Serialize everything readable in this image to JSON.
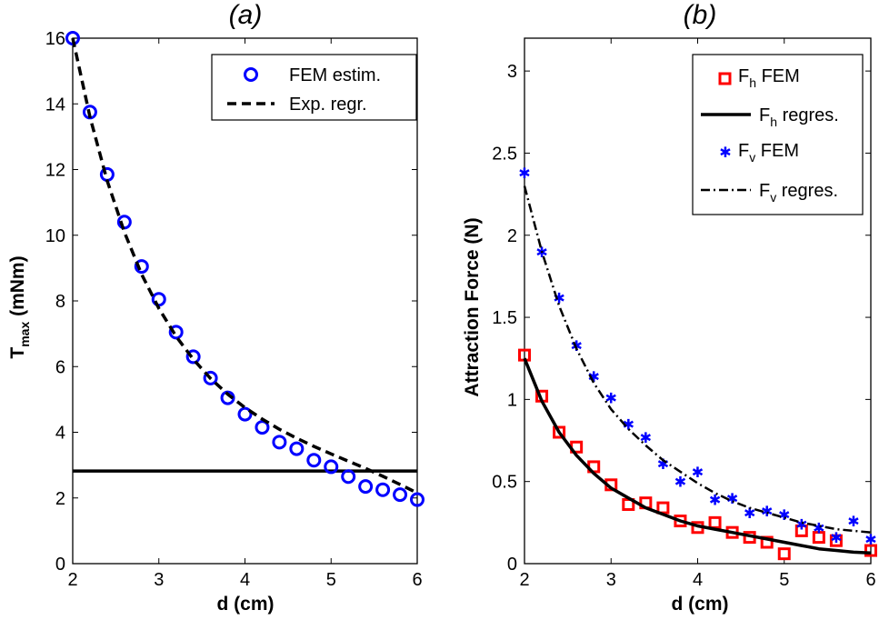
{
  "chart_data": [
    {
      "id": "a",
      "type": "scatter",
      "title": "(a)",
      "xlabel": "d (cm)",
      "ylabel_main": "T",
      "ylabel_sub": "max",
      "ylabel_rest": " (mNm)",
      "xlim": [
        2,
        6
      ],
      "ylim": [
        0,
        16
      ],
      "xticks": [
        2,
        3,
        4,
        5,
        6
      ],
      "yticks": [
        0,
        2,
        4,
        6,
        8,
        10,
        12,
        14,
        16
      ],
      "legend_position": "top-right",
      "hline": {
        "y": 2.82,
        "color": "#000000"
      },
      "series": [
        {
          "name": "FEM estim.",
          "marker": "circle",
          "color": "#0000ff",
          "x": [
            2.0,
            2.2,
            2.4,
            2.6,
            2.8,
            3.0,
            3.2,
            3.4,
            3.6,
            3.8,
            4.0,
            4.2,
            4.4,
            4.6,
            4.8,
            5.0,
            5.2,
            5.4,
            5.6,
            5.8,
            6.0
          ],
          "y": [
            16.0,
            13.75,
            11.85,
            10.4,
            9.05,
            8.05,
            7.05,
            6.3,
            5.65,
            5.05,
            4.55,
            4.15,
            3.7,
            3.5,
            3.15,
            2.95,
            2.65,
            2.35,
            2.25,
            2.1,
            1.95
          ]
        },
        {
          "name": "Exp. regr.",
          "line": "dashed",
          "color": "#000000",
          "x": [
            2.0,
            2.2,
            2.4,
            2.6,
            2.8,
            3.0,
            3.2,
            3.4,
            3.6,
            3.8,
            4.0,
            4.2,
            4.4,
            4.6,
            4.8,
            5.0,
            5.2,
            5.4,
            5.6,
            5.8,
            6.0
          ],
          "y": [
            16.0,
            13.6,
            11.66,
            10.09,
            8.81,
            7.77,
            6.92,
            6.22,
            5.64,
            5.16,
            4.75,
            4.4,
            4.09,
            3.82,
            3.57,
            3.34,
            3.12,
            2.9,
            2.66,
            2.41,
            2.15
          ]
        }
      ]
    },
    {
      "id": "b",
      "type": "scatter",
      "title": "(b)",
      "xlabel": "d (cm)",
      "ylabel": "Attraction Force (N)",
      "xlim": [
        2,
        6
      ],
      "ylim": [
        0,
        3.2
      ],
      "xticks": [
        2,
        3,
        4,
        5,
        6
      ],
      "yticks": [
        0,
        0.5,
        1,
        1.5,
        2,
        2.5,
        3
      ],
      "legend_position": "top-right",
      "series": [
        {
          "name": "F",
          "sub": "h",
          "rest": " FEM",
          "marker": "square",
          "color": "#ff0000",
          "x": [
            2.0,
            2.2,
            2.4,
            2.6,
            2.8,
            3.0,
            3.2,
            3.4,
            3.6,
            3.8,
            4.0,
            4.2,
            4.4,
            4.6,
            4.8,
            5.0,
            5.2,
            5.4,
            5.6,
            6.0
          ],
          "y": [
            1.27,
            1.02,
            0.8,
            0.71,
            0.59,
            0.48,
            0.36,
            0.37,
            0.34,
            0.26,
            0.22,
            0.25,
            0.19,
            0.16,
            0.13,
            0.06,
            0.2,
            0.16,
            0.14,
            0.08
          ]
        },
        {
          "name": "F",
          "sub": "h",
          "rest": " regres.",
          "line": "solid",
          "color": "#000000",
          "x": [
            2.0,
            2.2,
            2.4,
            2.6,
            2.8,
            3.0,
            3.2,
            3.4,
            3.6,
            3.8,
            4.0,
            4.2,
            4.4,
            4.6,
            4.8,
            5.0,
            5.2,
            5.4,
            5.6,
            5.8,
            6.0
          ],
          "y": [
            1.25,
            0.99,
            0.8,
            0.66,
            0.55,
            0.46,
            0.4,
            0.34,
            0.3,
            0.26,
            0.23,
            0.21,
            0.19,
            0.17,
            0.15,
            0.13,
            0.11,
            0.09,
            0.08,
            0.07,
            0.065
          ]
        },
        {
          "name": "F",
          "sub": "v",
          "rest": " FEM",
          "marker": "star",
          "color": "#0000ff",
          "x": [
            2.0,
            2.2,
            2.4,
            2.6,
            2.8,
            3.0,
            3.2,
            3.4,
            3.6,
            3.8,
            4.0,
            4.2,
            4.4,
            4.6,
            4.8,
            5.0,
            5.2,
            5.4,
            5.6,
            5.8,
            6.0
          ],
          "y": [
            2.38,
            1.9,
            1.62,
            1.33,
            1.14,
            1.01,
            0.85,
            0.77,
            0.61,
            0.5,
            0.56,
            0.39,
            0.4,
            0.31,
            0.32,
            0.3,
            0.24,
            0.22,
            0.16,
            0.26,
            0.15
          ]
        },
        {
          "name": "F",
          "sub": "v",
          "rest": " regres.",
          "line": "dashdot",
          "color": "#000000",
          "x": [
            2.0,
            2.2,
            2.4,
            2.6,
            2.8,
            3.0,
            3.2,
            3.4,
            3.6,
            3.8,
            4.0,
            4.2,
            4.4,
            4.6,
            4.8,
            5.0,
            5.2,
            5.4,
            5.6,
            5.8,
            6.0
          ],
          "y": [
            2.3,
            1.9,
            1.57,
            1.31,
            1.1,
            0.94,
            0.82,
            0.72,
            0.63,
            0.56,
            0.49,
            0.43,
            0.38,
            0.34,
            0.31,
            0.28,
            0.25,
            0.23,
            0.21,
            0.2,
            0.19
          ]
        }
      ]
    }
  ]
}
